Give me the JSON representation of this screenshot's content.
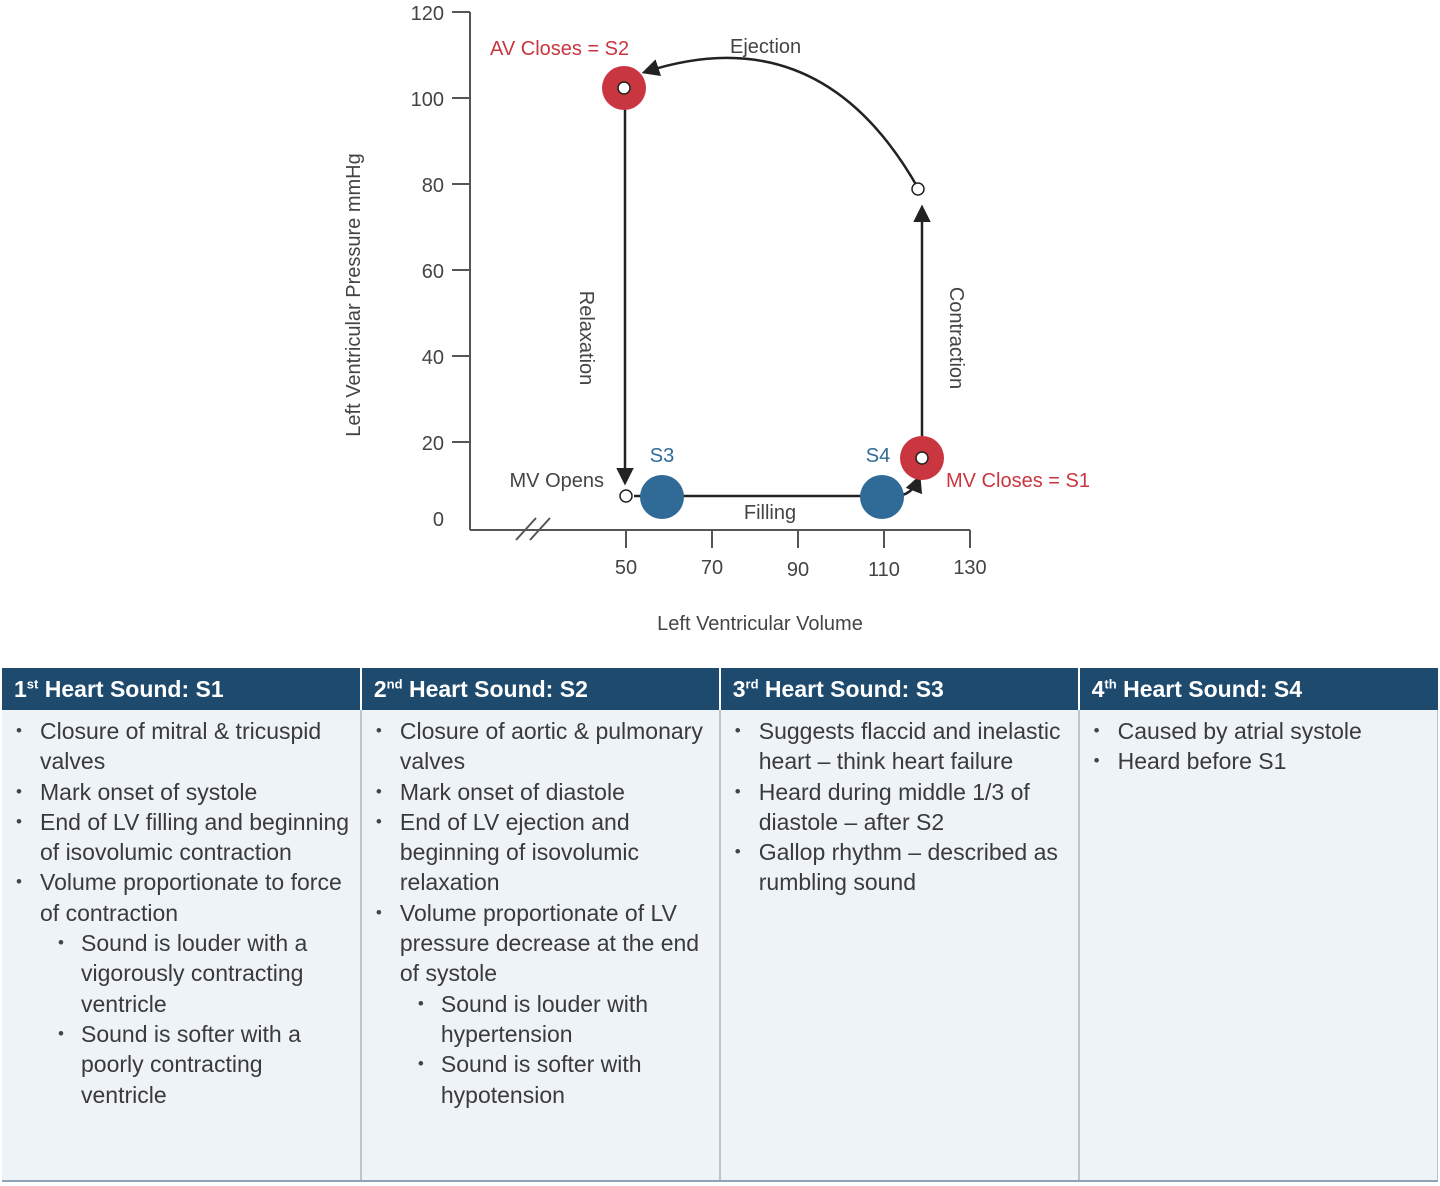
{
  "diagram": {
    "y_axis_label": "Left Ventricular Pressure mmHg",
    "x_axis_label": "Left Ventricular Volume",
    "y_ticks": [
      "0",
      "20",
      "40",
      "60",
      "80",
      "100",
      "120"
    ],
    "x_ticks": [
      "50",
      "70",
      "90",
      "110",
      "130"
    ],
    "labels": {
      "av_closes": "AV Closes = S2",
      "ejection": "Ejection",
      "relaxation": "Relaxation",
      "contraction": "Contraction",
      "mv_opens": "MV Opens",
      "mv_closes": "MV Closes = S1",
      "filling": "Filling",
      "s3": "S3",
      "s4": "S4"
    },
    "colors": {
      "red": "#c9363f",
      "blue": "#2f6b96",
      "header": "#1e4a6e",
      "cell_bg": "#eef3f8"
    }
  },
  "table": {
    "columns": [
      {
        "num": "1",
        "sup": "st",
        "title": " Heart Sound:  S1",
        "items": [
          {
            "text": "Closure of mitral & tricuspid valves"
          },
          {
            "text": "Mark onset of systole"
          },
          {
            "text": "End of LV filling and beginning of isovolumic contraction"
          },
          {
            "text": "Volume proportionate to force of contraction",
            "sub": [
              "Sound is louder with a vigorously contracting ventricle",
              "Sound is softer with a poorly contracting ventricle"
            ]
          }
        ]
      },
      {
        "num": "2",
        "sup": "nd",
        "title": " Heart Sound:  S2",
        "items": [
          {
            "text": "Closure of aortic & pulmonary valves"
          },
          {
            "text": "Mark onset of diastole"
          },
          {
            "text": "End of LV ejection and beginning of isovolumic relaxation"
          },
          {
            "text": "Volume proportionate of LV pressure decrease at the end of systole",
            "sub": [
              "Sound is louder with hypertension",
              "Sound is softer with hypotension"
            ]
          }
        ]
      },
      {
        "num": "3",
        "sup": "rd",
        "title": " Heart Sound:  S3",
        "items": [
          {
            "text": "Suggests flaccid and inelastic heart – think heart failure"
          },
          {
            "text": "Heard during middle 1/3 of diastole – after S2"
          },
          {
            "text": "Gallop rhythm – described as rumbling sound"
          }
        ]
      },
      {
        "num": "4",
        "sup": "th",
        "title": " Heart Sound: S4",
        "items": [
          {
            "text": "Caused by atrial systole"
          },
          {
            "text": "Heard before S1"
          }
        ]
      }
    ]
  }
}
